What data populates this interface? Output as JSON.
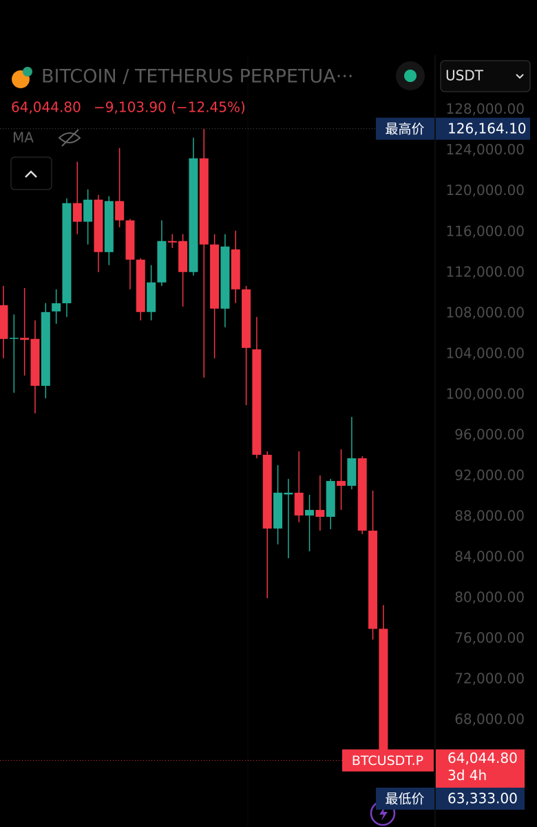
{
  "header": {
    "title": "BITCOIN / TETHERUS PERPETUA···",
    "price": "64,044.80",
    "change": "−9,103.90 (−12.45%)",
    "indicator": "MA",
    "currency": "USDT"
  },
  "chart_data": {
    "type": "candlestick",
    "categories": [
      null,
      null,
      null,
      null,
      null,
      null,
      null,
      null,
      null,
      null,
      null,
      null,
      null,
      null,
      null,
      null,
      null,
      null,
      null,
      null,
      null,
      null,
      null,
      null,
      null,
      null,
      null,
      null,
      null,
      null,
      null,
      null,
      null,
      null,
      null,
      null,
      null
    ],
    "open": [
      108814,
      105500,
      105600,
      105500,
      100880,
      108200,
      109000,
      118850,
      117020,
      119190,
      114030,
      119050,
      117150,
      113290,
      108140,
      111050,
      115120,
      115120,
      112070,
      123250,
      114780,
      108470,
      114300,
      110370,
      104470,
      94100,
      86850,
      90200,
      90370,
      88130,
      88680,
      88000,
      91530,
      91050,
      93760,
      86640,
      76990
    ],
    "high": [
      110712,
      107900,
      110500,
      107320,
      109017,
      110370,
      119320,
      122915,
      120200,
      119660,
      119530,
      124271,
      117290,
      113420,
      112750,
      117150,
      115800,
      115800,
      125288,
      126164.1,
      115800,
      115800,
      116140,
      110710,
      107660,
      94440,
      93080,
      91730,
      94440,
      90170,
      92070,
      91730,
      94640,
      97830,
      93970,
      90580,
      79320
    ],
    "low": [
      103593,
      100200,
      101900,
      98169,
      99661,
      106980,
      107660,
      115797,
      114780,
      112068,
      112750,
      116470,
      110373,
      107320,
      107320,
      110710,
      114440,
      108678,
      111730,
      101695,
      103590,
      106640,
      109020,
      98983,
      93760,
      80000,
      85290,
      83930,
      87460,
      84610,
      86640,
      86780,
      88680,
      90710,
      86300,
      75930,
      63333
    ],
    "close": [
      105492,
      105600,
      105400,
      100881,
      108136,
      109000,
      118847,
      117017,
      119186,
      114034,
      119050,
      117153,
      113288,
      108140,
      111051,
      115119,
      114980,
      112070,
      123254,
      114780,
      108475,
      114580,
      110370,
      104610,
      94102,
      86847,
      90373,
      90370,
      88136,
      88680,
      88000,
      91525,
      91050,
      93763,
      86644,
      76983,
      64044.8
    ],
    "up_color": "#22ab94",
    "down_color": "#f23645",
    "ylim": [
      57500,
      133400
    ],
    "yticks": [
      {
        "value": 128000,
        "label": "128,000.00"
      },
      {
        "value": 124000,
        "label": "124,000.00"
      },
      {
        "value": 120000,
        "label": "120,000.00"
      },
      {
        "value": 116000,
        "label": "116,000.00"
      },
      {
        "value": 112000,
        "label": "112,000.00"
      },
      {
        "value": 108000,
        "label": "108,000.00"
      },
      {
        "value": 104000,
        "label": "104,000.00"
      },
      {
        "value": 100000,
        "label": "100,000.00"
      },
      {
        "value": 96000,
        "label": "96,000.00"
      },
      {
        "value": 92000,
        "label": "92,000.00"
      },
      {
        "value": 88000,
        "label": "88,000.00"
      },
      {
        "value": 84000,
        "label": "84,000.00"
      },
      {
        "value": 80000,
        "label": "80,000.00"
      },
      {
        "value": 76000,
        "label": "76,000.00"
      },
      {
        "value": 72000,
        "label": "72,000.00"
      },
      {
        "value": 68000,
        "label": "68,000.00"
      }
    ],
    "markers": {
      "high": {
        "name": "最高价",
        "value": 126164.1,
        "label": "126,164.10"
      },
      "last": {
        "name": "BTCUSDT.P",
        "value": 64044.8,
        "label": "64,044.80",
        "countdown": "3d 4h"
      },
      "low": {
        "name": "最低价",
        "value": 63333,
        "label": "63,333.00"
      }
    }
  }
}
